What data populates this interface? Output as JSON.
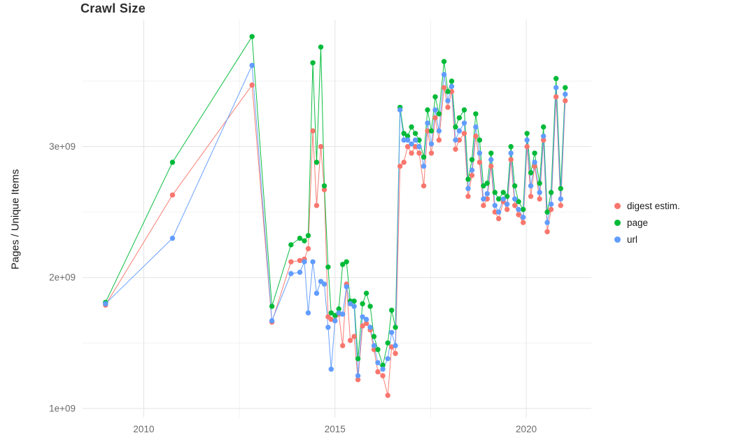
{
  "chart": {
    "title": "Crawl Size",
    "ylabel": "Pages / Unique Items",
    "xlabel": ""
  },
  "chart_data": {
    "type": "line",
    "title": "Crawl Size",
    "xlabel": "",
    "ylabel": "Pages / Unique Items",
    "value_unit": "items (multiply by 1e9)",
    "x_unit": "year (decimal, crawl date)",
    "grid": true,
    "legend_position": "right",
    "xlim": [
      2008.4,
      2021.7
    ],
    "ylim_e9": [
      0.93,
      3.97
    ],
    "x_ticks": [
      {
        "value": 2010,
        "label": "2010"
      },
      {
        "value": 2015,
        "label": "2015"
      },
      {
        "value": 2020,
        "label": "2020"
      }
    ],
    "y_ticks": [
      {
        "value": 1,
        "label": "1e+09"
      },
      {
        "value": 2,
        "label": "2e+09"
      },
      {
        "value": 3,
        "label": "3e+09"
      }
    ],
    "x_minor_ticks": [
      2012.5,
      2017.5
    ],
    "y_minor_ticks": [
      1.5,
      2.5,
      3.5
    ],
    "x": [
      2009.0,
      2010.75,
      2012.83,
      2013.35,
      2013.85,
      2014.08,
      2014.2,
      2014.3,
      2014.42,
      2014.52,
      2014.63,
      2014.72,
      2014.82,
      2014.9,
      2015.0,
      2015.1,
      2015.2,
      2015.3,
      2015.4,
      2015.5,
      2015.6,
      2015.72,
      2015.82,
      2015.92,
      2016.02,
      2016.12,
      2016.25,
      2016.38,
      2016.48,
      2016.58,
      2016.7,
      2016.8,
      2016.9,
      2017.0,
      2017.1,
      2017.2,
      2017.32,
      2017.42,
      2017.52,
      2017.62,
      2017.72,
      2017.85,
      2017.95,
      2018.05,
      2018.15,
      2018.25,
      2018.38,
      2018.48,
      2018.58,
      2018.68,
      2018.78,
      2018.88,
      2018.98,
      2019.08,
      2019.18,
      2019.28,
      2019.4,
      2019.5,
      2019.6,
      2019.7,
      2019.8,
      2019.92,
      2020.02,
      2020.12,
      2020.22,
      2020.35,
      2020.45,
      2020.55,
      2020.65,
      2020.78,
      2020.9,
      2021.02
    ],
    "series": [
      {
        "name": "digest estim.",
        "color": "#F8766D",
        "values": [
          1.79,
          2.63,
          3.47,
          1.66,
          2.12,
          2.13,
          2.14,
          2.22,
          3.12,
          2.55,
          3.0,
          2.67,
          1.7,
          1.68,
          1.67,
          1.72,
          1.48,
          1.95,
          1.52,
          1.55,
          1.22,
          1.63,
          1.65,
          1.6,
          1.45,
          1.28,
          1.25,
          1.1,
          1.47,
          1.42,
          2.85,
          2.88,
          3.0,
          2.95,
          3.0,
          2.95,
          2.7,
          3.12,
          2.95,
          3.22,
          3.05,
          3.45,
          3.3,
          3.42,
          2.98,
          3.05,
          3.1,
          2.62,
          2.78,
          3.08,
          2.88,
          2.55,
          2.6,
          2.85,
          2.5,
          2.45,
          2.58,
          2.52,
          2.9,
          2.55,
          2.48,
          2.42,
          3.0,
          2.62,
          2.85,
          2.6,
          3.05,
          2.35,
          2.52,
          3.38,
          2.55,
          3.35
        ]
      },
      {
        "name": "page",
        "color": "#00BA38",
        "values": [
          1.81,
          2.88,
          3.84,
          1.78,
          2.25,
          2.3,
          2.28,
          2.32,
          3.64,
          2.88,
          3.76,
          2.7,
          2.08,
          1.73,
          1.71,
          1.76,
          2.1,
          2.12,
          1.82,
          1.82,
          1.38,
          1.8,
          1.88,
          1.78,
          1.55,
          1.45,
          1.33,
          1.5,
          1.75,
          1.62,
          3.3,
          3.1,
          3.08,
          3.15,
          3.1,
          3.05,
          2.92,
          3.28,
          3.12,
          3.38,
          3.25,
          3.65,
          3.42,
          3.5,
          3.15,
          3.22,
          3.28,
          2.75,
          2.9,
          3.25,
          3.05,
          2.7,
          2.72,
          2.95,
          2.65,
          2.6,
          2.65,
          2.62,
          3.0,
          2.7,
          2.58,
          2.52,
          3.1,
          2.8,
          2.95,
          2.72,
          3.15,
          2.5,
          2.65,
          3.52,
          2.68,
          3.45
        ]
      },
      {
        "name": "url",
        "color": "#619CFF",
        "values": [
          1.8,
          2.3,
          3.62,
          1.67,
          2.03,
          2.04,
          2.12,
          1.73,
          2.12,
          1.88,
          1.97,
          1.95,
          1.62,
          1.3,
          1.67,
          1.73,
          1.72,
          1.93,
          1.8,
          1.78,
          1.25,
          1.7,
          1.68,
          1.62,
          1.48,
          1.35,
          1.3,
          1.38,
          1.58,
          1.48,
          3.28,
          3.05,
          3.05,
          3.02,
          3.05,
          3.0,
          2.85,
          3.18,
          3.02,
          3.28,
          3.12,
          3.55,
          3.35,
          3.46,
          3.05,
          3.12,
          3.18,
          2.68,
          2.82,
          3.15,
          2.95,
          2.6,
          2.64,
          2.9,
          2.55,
          2.5,
          2.6,
          2.56,
          2.95,
          2.6,
          2.52,
          2.46,
          3.05,
          2.7,
          2.88,
          2.65,
          3.08,
          2.42,
          2.56,
          3.45,
          2.6,
          3.4
        ]
      }
    ]
  },
  "style": {
    "grid_major_color": "#e4e4e4",
    "grid_minor_color": "#f2f2f2",
    "axis_text_color": "#6b6b6b"
  }
}
